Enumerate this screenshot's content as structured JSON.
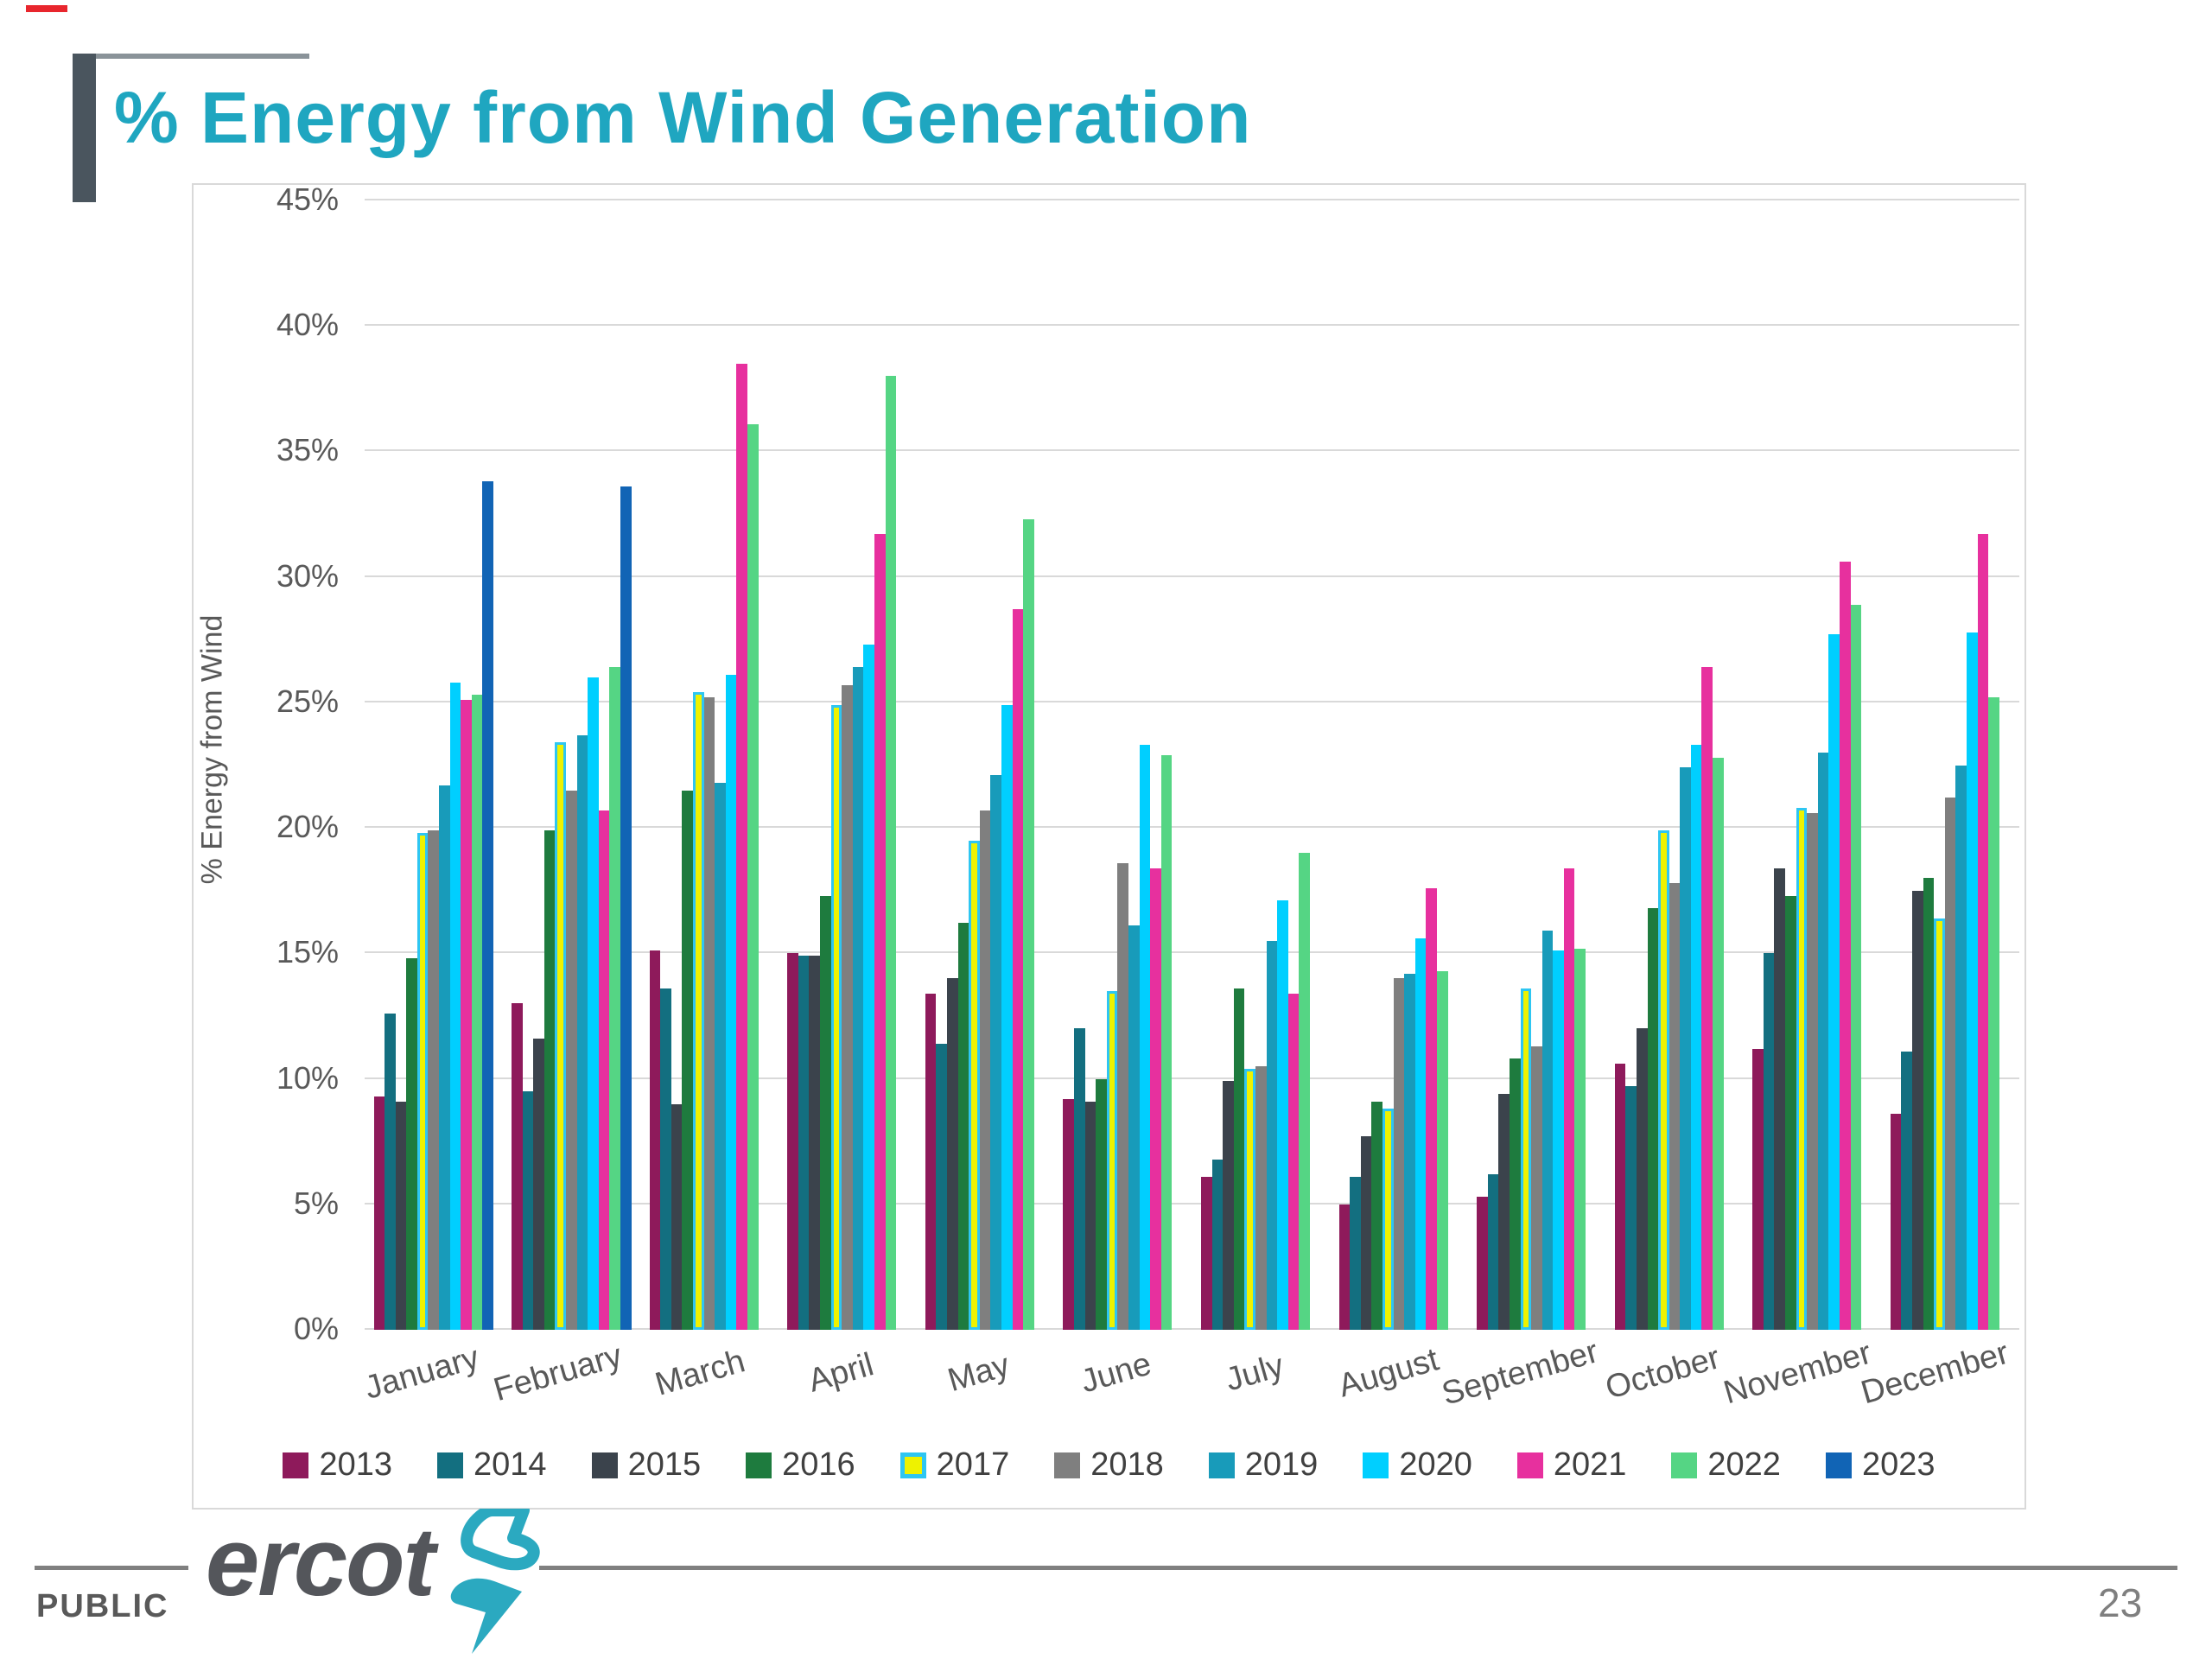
{
  "slide": {
    "title": "% Energy from Wind Generation",
    "footer_label": "PUBLIC",
    "brand": "ercot",
    "page_number": "23"
  },
  "colors": {
    "title_teal": "#1fa6c0",
    "accent_dark": "#4a555e",
    "gridline": "#d9d9d9",
    "axis_text": "#595959",
    "bolt_teal": "#2ba9c0"
  },
  "chart_data": {
    "type": "bar",
    "title": "",
    "xlabel": "",
    "ylabel": "% Energy from Wind",
    "ylim": [
      0,
      45
    ],
    "ytick_step": 5,
    "ytick_labels": [
      "0%",
      "5%",
      "10%",
      "15%",
      "20%",
      "25%",
      "30%",
      "35%",
      "40%",
      "45%"
    ],
    "grid": true,
    "legend_position": "bottom",
    "categories": [
      "January",
      "February",
      "March",
      "April",
      "May",
      "June",
      "July",
      "August",
      "September",
      "October",
      "November",
      "December"
    ],
    "series": [
      {
        "name": "2013",
        "color": "#8e1a5b",
        "values": [
          9.3,
          13.0,
          15.1,
          15.0,
          13.4,
          9.2,
          6.1,
          5.0,
          5.3,
          10.6,
          11.2,
          8.6
        ]
      },
      {
        "name": "2014",
        "color": "#136f80",
        "values": [
          12.6,
          9.5,
          13.6,
          14.9,
          11.4,
          12.0,
          6.8,
          6.1,
          6.2,
          9.7,
          15.0,
          11.1
        ]
      },
      {
        "name": "2015",
        "color": "#3b434c",
        "values": [
          9.1,
          11.6,
          9.0,
          14.9,
          14.0,
          9.1,
          9.9,
          7.7,
          9.4,
          12.0,
          18.4,
          17.5
        ]
      },
      {
        "name": "2016",
        "color": "#1e7b3e",
        "values": [
          14.8,
          19.9,
          21.5,
          17.3,
          16.2,
          10.0,
          13.6,
          9.1,
          10.8,
          16.8,
          17.3,
          18.0
        ]
      },
      {
        "name": "2017",
        "color": "#eef200",
        "border": "#2ec6f2",
        "values": [
          19.8,
          23.4,
          25.4,
          24.9,
          19.5,
          13.5,
          10.4,
          8.8,
          13.6,
          19.9,
          20.8,
          16.4
        ]
      },
      {
        "name": "2018",
        "color": "#7f7f7f",
        "values": [
          19.9,
          21.5,
          25.2,
          25.7,
          20.7,
          18.6,
          10.5,
          14.0,
          11.3,
          17.8,
          20.6,
          21.2
        ]
      },
      {
        "name": "2019",
        "color": "#189bba",
        "values": [
          21.7,
          23.7,
          21.8,
          26.4,
          22.1,
          16.1,
          15.5,
          14.2,
          15.9,
          22.4,
          23.0,
          22.5
        ]
      },
      {
        "name": "2020",
        "color": "#00cfff",
        "values": [
          25.8,
          26.0,
          26.1,
          27.3,
          24.9,
          23.3,
          17.1,
          15.6,
          15.1,
          23.3,
          27.7,
          27.8
        ]
      },
      {
        "name": "2021",
        "color": "#e7309e",
        "values": [
          25.1,
          20.7,
          38.5,
          31.7,
          28.7,
          18.4,
          13.4,
          17.6,
          18.4,
          26.4,
          30.6,
          31.7
        ]
      },
      {
        "name": "2022",
        "color": "#55d584",
        "values": [
          25.3,
          26.4,
          36.1,
          38.0,
          32.3,
          22.9,
          19.0,
          14.3,
          15.2,
          22.8,
          28.9,
          25.2
        ]
      },
      {
        "name": "2023",
        "color": "#1164b5",
        "values": [
          33.8,
          33.6,
          null,
          null,
          null,
          null,
          null,
          null,
          null,
          null,
          null,
          null
        ]
      }
    ]
  }
}
